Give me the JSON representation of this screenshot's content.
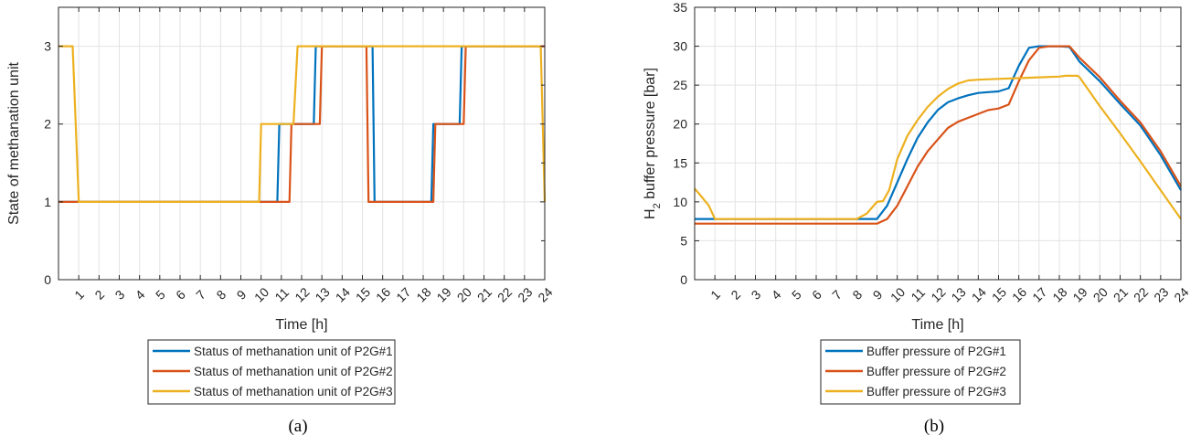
{
  "chart_data": [
    {
      "type": "line",
      "caption": "(a)",
      "xlabel": "Time [h]",
      "ylabel": "State of methanation unit",
      "xlim": [
        0,
        24
      ],
      "ylim": [
        0,
        3.5
      ],
      "x_ticks": [
        "1",
        "2",
        "3",
        "4",
        "5",
        "6",
        "7",
        "8",
        "9",
        "10",
        "11",
        "12",
        "13",
        "14",
        "15",
        "16",
        "17",
        "18",
        "19",
        "20",
        "21",
        "22",
        "23",
        "24"
      ],
      "y_ticks": [
        "0",
        "1",
        "2",
        "3"
      ],
      "y_tick_values": [
        0,
        1,
        2,
        3
      ],
      "grid": true,
      "legend_position": "below",
      "series": [
        {
          "name": "Status of methanation unit of P2G#1",
          "color": "#0072BD",
          "x": [
            0,
            1,
            1.1,
            10.8,
            10.9,
            12.6,
            12.7,
            15.5,
            15.6,
            18.4,
            18.5,
            19.8,
            19.9,
            24
          ],
          "y": [
            1,
            1,
            1,
            1,
            2,
            2,
            3,
            3,
            1,
            1,
            2,
            2,
            3,
            3
          ]
        },
        {
          "name": "Status of methanation unit of P2G#2",
          "color": "#D95319",
          "x": [
            0,
            10.2,
            11.4,
            11.5,
            12.9,
            13.0,
            15.2,
            15.3,
            18.5,
            18.6,
            20.0,
            20.1,
            24
          ],
          "y": [
            1,
            1,
            1,
            2,
            2,
            3,
            3,
            1,
            1,
            2,
            2,
            3,
            3
          ]
        },
        {
          "name": "Status of methanation unit of P2G#3",
          "color": "#EDB120",
          "x": [
            0,
            0.7,
            1.0,
            9.9,
            10.0,
            11.6,
            11.8,
            23.8,
            24
          ],
          "y": [
            3,
            3,
            1,
            1,
            2,
            2,
            3,
            3,
            1
          ]
        }
      ]
    },
    {
      "type": "line",
      "caption": "(b)",
      "xlabel": "Time [h]",
      "ylabel": "H",
      "ylabel_sub": "2",
      "ylabel_rest": " buffer pressure [bar]",
      "xlim": [
        0,
        24
      ],
      "ylim": [
        0,
        35
      ],
      "x_ticks": [
        "1",
        "2",
        "3",
        "4",
        "5",
        "6",
        "7",
        "8",
        "9",
        "10",
        "11",
        "12",
        "13",
        "14",
        "15",
        "16",
        "17",
        "18",
        "19",
        "20",
        "21",
        "22",
        "23",
        "24"
      ],
      "y_ticks": [
        "0",
        "5",
        "10",
        "15",
        "20",
        "25",
        "30",
        "35"
      ],
      "y_tick_values": [
        0,
        5,
        10,
        15,
        20,
        25,
        30,
        35
      ],
      "grid": true,
      "legend_position": "below",
      "series": [
        {
          "name": "Buffer pressure of P2G#1",
          "color": "#0072BD",
          "x": [
            0,
            0.9,
            1,
            2,
            3,
            4,
            5,
            6,
            7,
            8,
            9,
            9.5,
            10,
            10.5,
            11,
            11.5,
            12,
            12.5,
            13,
            13.5,
            14,
            14.5,
            15,
            15.5,
            16,
            16.5,
            17,
            17.5,
            18,
            18.5,
            19,
            20,
            21,
            22,
            23,
            24
          ],
          "y": [
            7.8,
            7.8,
            7.8,
            7.8,
            7.8,
            7.8,
            7.8,
            7.8,
            7.8,
            7.8,
            7.8,
            9.5,
            12.5,
            15.5,
            18.2,
            20.2,
            21.8,
            22.8,
            23.3,
            23.7,
            24.0,
            24.1,
            24.2,
            24.6,
            27.5,
            29.8,
            30.0,
            30.0,
            30.0,
            29.9,
            28.0,
            25.5,
            22.6,
            19.8,
            16.0,
            11.5
          ]
        },
        {
          "name": "Buffer pressure of P2G#2",
          "color": "#D95319",
          "x": [
            0,
            1,
            2,
            3,
            4,
            5,
            6,
            7,
            8,
            9,
            9.5,
            10,
            10.5,
            11,
            11.5,
            12,
            12.5,
            13,
            13.5,
            14,
            14.5,
            15,
            15.5,
            16,
            16.5,
            17,
            17.5,
            18,
            18.5,
            19,
            20,
            21,
            22,
            23,
            24
          ],
          "y": [
            7.2,
            7.2,
            7.2,
            7.2,
            7.2,
            7.2,
            7.2,
            7.2,
            7.2,
            7.2,
            7.8,
            9.5,
            12.0,
            14.5,
            16.5,
            18.0,
            19.5,
            20.3,
            20.8,
            21.3,
            21.8,
            22.0,
            22.5,
            25.5,
            28.2,
            29.8,
            30.0,
            30.0,
            30.0,
            28.5,
            26.0,
            23.0,
            20.2,
            16.5,
            12.0
          ]
        },
        {
          "name": "Buffer pressure of P2G#3",
          "color": "#EDB120",
          "x": [
            0,
            0.3,
            0.7,
            1,
            2,
            3,
            4,
            5,
            6,
            7,
            8,
            8.5,
            9,
            9.3,
            9.6,
            10,
            10.5,
            11,
            11.5,
            12,
            12.5,
            13,
            13.5,
            14,
            15,
            16,
            17,
            18,
            18.3,
            18.9,
            19,
            20,
            21,
            22,
            23,
            24
          ],
          "y": [
            11.7,
            10.8,
            9.5,
            7.8,
            7.8,
            7.8,
            7.8,
            7.8,
            7.8,
            7.8,
            7.8,
            8.5,
            10.0,
            10.1,
            11.5,
            15.5,
            18.5,
            20.5,
            22.2,
            23.5,
            24.5,
            25.2,
            25.6,
            25.7,
            25.8,
            25.9,
            26.0,
            26.1,
            26.2,
            26.2,
            26.0,
            22.3,
            18.8,
            15.2,
            11.5,
            7.8
          ]
        }
      ]
    }
  ]
}
